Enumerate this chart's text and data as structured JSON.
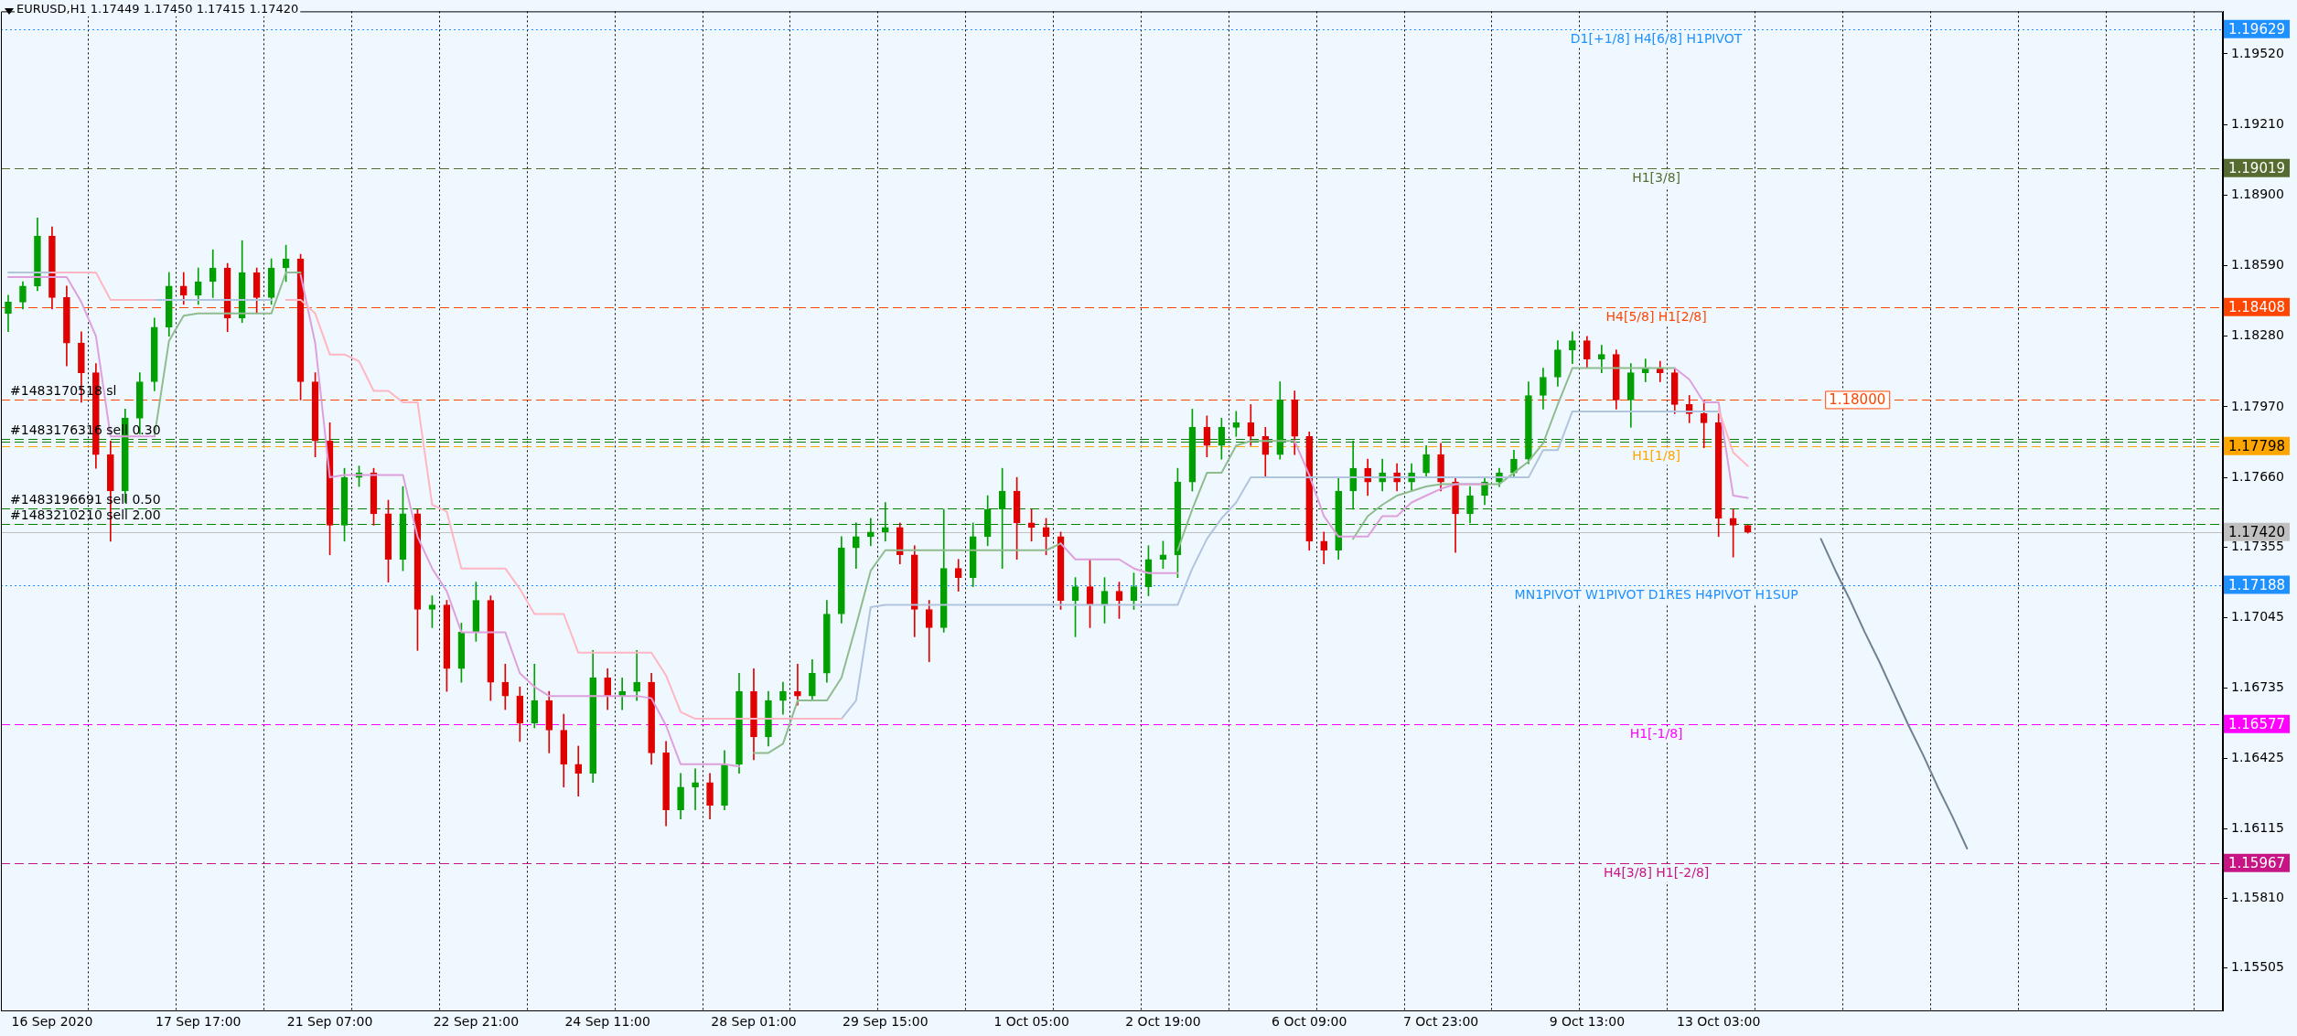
{
  "chart_data": {
    "type": "candlestick",
    "title": "EURUSD,H1 1.17449 1.17450 1.17415 1.17420",
    "grid": "x",
    "categories": [
      null,
      null,
      null,
      "16 Sep 2020",
      null,
      null,
      null,
      null,
      null,
      null,
      null,
      null,
      null,
      "17 Sep 17:00",
      null,
      null,
      null,
      null,
      null,
      null,
      null,
      null,
      "21 Sep 07:00",
      null,
      null,
      null,
      null,
      null,
      null,
      null,
      null,
      null,
      "22 Sep 21:00",
      null,
      null,
      null,
      null,
      null,
      null,
      null,
      null,
      "24 Sep 11:00",
      null,
      null,
      null,
      null,
      null,
      null,
      null,
      null,
      null,
      "28 Sep 01:00",
      null,
      null,
      null,
      null,
      null,
      null,
      null,
      null,
      "29 Sep 15:00",
      null,
      null,
      null,
      null,
      null,
      null,
      null,
      null,
      null,
      "1 Oct 05:00",
      null,
      null,
      null,
      null,
      null,
      null,
      null,
      null,
      "2 Oct 19:00",
      null,
      null,
      null,
      null,
      null,
      null,
      null,
      null,
      null,
      "6 Oct 09:00",
      null,
      null,
      null,
      null,
      null,
      null,
      null,
      null,
      "7 Oct 23:00",
      null,
      null,
      null,
      null,
      null,
      null,
      null,
      null,
      null,
      "9 Oct 13:00",
      null,
      null,
      null,
      null,
      null,
      null,
      null,
      null,
      "13 Oct 03:00",
      null,
      null,
      null,
      null,
      null,
      null,
      null,
      null,
      null,
      null,
      null,
      null,
      null,
      null,
      null,
      null,
      null,
      null,
      null,
      null,
      null,
      null,
      null,
      null,
      null,
      null,
      null,
      null,
      null,
      null,
      null,
      null,
      null,
      null
    ],
    "ylim": [
      1.15319,
      1.19707
    ],
    "yticks": [
      {
        "value": 1.1952,
        "label": "1.19520"
      },
      {
        "value": 1.1921,
        "label": "1.19210"
      },
      {
        "value": 1.189,
        "label": "1.18900"
      },
      {
        "value": 1.1859,
        "label": "1.18590"
      },
      {
        "value": 1.1828,
        "label": "1.18280"
      },
      {
        "value": 1.1797,
        "label": "1.17970"
      },
      {
        "value": 1.1766,
        "label": "1.17660"
      },
      {
        "value": 1.17355,
        "label": "1.17355"
      },
      {
        "value": 1.17045,
        "label": "1.17045"
      },
      {
        "value": 1.16735,
        "label": "1.16735"
      },
      {
        "value": 1.16425,
        "label": "1.16425"
      },
      {
        "value": 1.16115,
        "label": "1.16115"
      },
      {
        "value": 1.1581,
        "label": "1.15810"
      },
      {
        "value": 1.15505,
        "label": "1.15505"
      }
    ],
    "y2lim": [
      1.15319,
      1.19707
    ],
    "y2ticks": [
      {
        "value": 1.19629,
        "label": "1.19629"
      },
      {
        "value": 1.19019,
        "label": "1.19019"
      },
      {
        "value": 1.18408,
        "label": "1.18408"
      },
      {
        "value": 1.17798,
        "label": "1.17798"
      },
      {
        "value": 1.1742,
        "label": "1.17420"
      },
      {
        "value": 1.17188,
        "label": "1.17188"
      },
      {
        "value": 1.16577,
        "label": "1.16577"
      },
      {
        "value": 1.15967,
        "label": "1.15967"
      }
    ],
    "series": [
      {
        "type": "line",
        "color": "#ffb6c1",
        "values": [
          null,
          null,
          null,
          1.1856,
          1.1856,
          1.1856,
          1.1856,
          1.1844,
          1.1844,
          1.1844,
          1.1844,
          null,
          null,
          null,
          null,
          null,
          null,
          null,
          null,
          1.1844,
          1.1844,
          1.1838,
          1.182,
          1.182,
          1.1817,
          1.1804,
          1.1804,
          1.1799,
          1.1799,
          1.1754,
          1.1751,
          1.1726,
          1.1726,
          1.1726,
          1.1726,
          1.1717,
          1.1706,
          1.1706,
          1.1706,
          1.1689,
          1.1689,
          1.1689,
          1.1689,
          1.1689,
          1.1689,
          1.1679,
          1.1663,
          1.166,
          1.166,
          1.166,
          1.166,
          1.166,
          1.166,
          1.166,
          1.166,
          1.166,
          1.166,
          1.166,
          null,
          null,
          null,
          null,
          null,
          null,
          null,
          null,
          null,
          null,
          null,
          null,
          null,
          null,
          null,
          null,
          null,
          null,
          null,
          null,
          null,
          null,
          null,
          null,
          null,
          null,
          null,
          null,
          null,
          null,
          null,
          null,
          null,
          null,
          null,
          null,
          null,
          null,
          null,
          null,
          null,
          null,
          null,
          null,
          null,
          null,
          null,
          null,
          null,
          null,
          null,
          null,
          null,
          null,
          null,
          null,
          null,
          null,
          null,
          1.1796,
          1.1777,
          1.1771,
          null,
          null,
          null,
          null,
          null,
          null,
          null,
          null,
          null,
          null,
          null,
          null,
          null,
          null,
          null,
          null,
          null,
          null,
          null,
          null,
          null,
          null,
          null,
          null,
          null,
          null,
          null,
          null,
          null,
          null,
          null,
          null
        ]
      },
      {
        "type": "line",
        "color": "#b0c4de",
        "values": [
          1.1856,
          1.1856,
          1.1856,
          1.1856,
          null,
          null,
          null,
          null,
          null,
          null,
          1.1844,
          1.1844,
          1.1844,
          1.1844,
          1.1844,
          1.1844,
          1.1844,
          1.1844,
          1.1844,
          null,
          null,
          null,
          null,
          null,
          null,
          null,
          null,
          null,
          null,
          null,
          null,
          null,
          null,
          null,
          null,
          null,
          null,
          null,
          null,
          null,
          null,
          null,
          null,
          null,
          null,
          null,
          null,
          null,
          null,
          null,
          null,
          null,
          null,
          null,
          null,
          null,
          null,
          1.166,
          1.1668,
          1.1709,
          1.171,
          1.171,
          1.171,
          1.171,
          1.171,
          1.171,
          1.171,
          1.171,
          1.171,
          1.171,
          1.171,
          1.171,
          1.171,
          1.171,
          1.171,
          1.171,
          1.171,
          1.171,
          1.171,
          1.171,
          1.171,
          1.1726,
          1.1739,
          1.1748,
          1.1755,
          1.1766,
          1.1766,
          1.1766,
          1.1766,
          1.1766,
          1.1766,
          1.1766,
          1.1766,
          1.1766,
          1.1766,
          1.1766,
          1.1766,
          1.1766,
          1.1766,
          1.1766,
          1.1766,
          1.1766,
          1.1766,
          1.1766,
          1.1766,
          1.1778,
          1.1778,
          1.1795,
          1.1795,
          1.1795,
          1.1795,
          1.1795,
          1.1795,
          1.1795,
          1.1795,
          1.1795,
          1.1795,
          1.1795,
          null,
          null,
          null,
          null,
          null,
          null,
          null,
          null,
          null,
          null,
          null,
          null,
          null,
          null,
          null,
          null,
          null,
          null,
          null,
          null,
          null,
          null,
          null,
          null,
          null,
          null,
          null,
          null,
          null,
          null,
          null,
          null,
          null,
          null
        ]
      },
      {
        "type": "line",
        "color": "#dda0dd",
        "values": [
          1.1854,
          1.1854,
          1.1854,
          1.1854,
          1.1854,
          1.1843,
          1.1828,
          1.1784,
          1.1784,
          1.1784,
          1.1784,
          null,
          null,
          null,
          null,
          null,
          null,
          null,
          null,
          null,
          1.1855,
          1.1825,
          1.1766,
          1.1767,
          1.1767,
          1.1767,
          1.1767,
          1.1767,
          1.174,
          1.1726,
          1.1716,
          1.1698,
          1.1698,
          1.1698,
          1.1698,
          1.168,
          1.1674,
          1.167,
          1.167,
          1.167,
          1.167,
          1.167,
          1.167,
          1.167,
          1.1669,
          1.1657,
          1.164,
          1.164,
          1.164,
          1.164,
          1.1639,
          null,
          null,
          null,
          null,
          null,
          null,
          null,
          null,
          null,
          null,
          null,
          null,
          null,
          null,
          null,
          null,
          null,
          null,
          null,
          null,
          null,
          1.1737,
          1.173,
          1.173,
          1.173,
          1.173,
          1.1726,
          1.1724,
          1.1724,
          1.1724,
          null,
          null,
          null,
          null,
          null,
          null,
          null,
          1.1782,
          1.1767,
          1.1749,
          1.174,
          1.174,
          1.174,
          1.1749,
          1.1749,
          1.1755,
          1.1758,
          1.1761,
          1.1763,
          1.1763,
          1.1763,
          null,
          null,
          null,
          null,
          null,
          null,
          null,
          null,
          null,
          null,
          null,
          null,
          1.1814,
          1.1809,
          1.1799,
          1.1799,
          1.1758,
          1.1757,
          null,
          null,
          null,
          null,
          null,
          null,
          null,
          null,
          null,
          null,
          null,
          null,
          null,
          null,
          null,
          null,
          null,
          null,
          null,
          null,
          null,
          null,
          null,
          null,
          null,
          null,
          null,
          null,
          null,
          null,
          null,
          null
        ]
      },
      {
        "type": "line",
        "color": "#8fbc8f",
        "values": [
          null,
          null,
          null,
          null,
          null,
          null,
          null,
          null,
          null,
          null,
          1.1784,
          1.1826,
          1.1837,
          1.1838,
          1.1838,
          1.1838,
          1.1838,
          1.1838,
          1.1838,
          1.1856,
          1.1856,
          null,
          null,
          null,
          null,
          null,
          null,
          null,
          null,
          null,
          null,
          null,
          null,
          null,
          null,
          null,
          null,
          null,
          null,
          null,
          null,
          null,
          null,
          null,
          null,
          null,
          null,
          null,
          null,
          null,
          null,
          1.1645,
          1.1645,
          1.1649,
          1.1668,
          1.1668,
          1.1668,
          1.1678,
          1.1701,
          1.1725,
          1.1734,
          1.1734,
          1.1734,
          1.1734,
          1.1734,
          1.1734,
          1.1734,
          1.1734,
          1.1734,
          1.1734,
          1.1734,
          1.1734,
          1.1737,
          null,
          null,
          null,
          null,
          null,
          null,
          null,
          1.1734,
          1.1752,
          1.1768,
          1.1768,
          1.178,
          1.1782,
          1.1782,
          1.1782,
          1.1782,
          null,
          null,
          null,
          1.1739,
          1.1749,
          1.1754,
          1.1758,
          1.176,
          1.1762,
          1.1763,
          1.1763,
          1.1763,
          1.1763,
          1.1763,
          1.1768,
          1.1773,
          1.1781,
          1.1798,
          1.1814,
          1.1814,
          1.1814,
          1.1814,
          1.1814,
          1.1814,
          1.1814,
          1.1814,
          null,
          null,
          null,
          null,
          null,
          null,
          null,
          null,
          null,
          null,
          null,
          null,
          null,
          null,
          null,
          null,
          null,
          null,
          null,
          null,
          null,
          null,
          null,
          null,
          null,
          null,
          null,
          null,
          null,
          null,
          null,
          null,
          null,
          null,
          null,
          null,
          null
        ]
      },
      {
        "type": "line",
        "color": "#708090",
        "values": [
          null,
          null,
          null,
          null,
          null,
          null,
          null,
          null,
          null,
          null,
          null,
          null,
          null,
          null,
          null,
          null,
          null,
          null,
          null,
          null,
          null,
          null,
          null,
          null,
          null,
          null,
          null,
          null,
          null,
          null,
          null,
          null,
          null,
          null,
          null,
          null,
          null,
          null,
          null,
          null,
          null,
          null,
          null,
          null,
          null,
          null,
          null,
          null,
          null,
          null,
          null,
          null,
          null,
          null,
          null,
          null,
          null,
          null,
          null,
          null,
          null,
          null,
          null,
          null,
          null,
          null,
          null,
          null,
          null,
          null,
          null,
          null,
          null,
          null,
          null,
          null,
          null,
          null,
          null,
          null,
          null,
          null,
          null,
          null,
          null,
          null,
          null,
          null,
          null,
          null,
          null,
          null,
          null,
          null,
          null,
          null,
          null,
          null,
          null,
          null,
          null,
          null,
          null,
          null,
          null,
          null,
          null,
          null,
          null,
          null,
          null,
          null,
          null,
          null,
          null,
          null,
          null,
          null,
          null,
          null,
          null,
          null,
          null,
          null,
          1.1739,
          1.1725,
          1.1712,
          1.1698,
          1.1685,
          1.1671,
          1.1657,
          1.1644,
          1.163,
          1.1617,
          1.1603,
          null,
          null,
          null,
          null,
          null,
          null,
          null,
          null,
          null,
          null,
          null,
          null,
          null,
          null,
          null,
          null,
          null
        ]
      },
      {
        "colors": [
          "#00a000",
          "#00a000",
          "#00a000",
          "#e00000",
          "#e00000",
          "#e00000",
          "#e00000",
          "#e00000",
          "#00a000",
          "#00a000",
          "#00a000",
          "#00a000",
          "#e00000",
          "#00a000",
          "#00a000",
          "#e00000",
          "#00a000",
          "#e00000",
          "#00a000",
          "#00a000",
          "#e00000",
          "#e00000",
          "#e00000",
          "#00a000",
          "#00a000",
          "#e00000",
          "#e00000",
          "#00a000",
          "#e00000",
          "#00a000",
          "#e00000",
          "#00a000",
          "#00a000",
          "#e00000",
          "#e00000",
          "#e00000",
          "#00a000",
          "#e00000",
          "#e00000",
          "#e00000",
          "#00a000",
          "#e00000",
          "#00a000",
          "#00a000",
          "#e00000",
          "#e00000",
          "#00a000",
          "#00a000",
          "#e00000",
          "#00a000",
          "#00a000",
          "#e00000",
          "#00a000",
          "#00a000",
          "#e00000",
          "#00a000",
          "#00a000",
          "#00a000",
          "#00a000",
          "#00a000",
          "#00a000",
          "#e00000",
          "#e00000",
          "#e00000",
          "#00a000",
          "#e00000",
          "#00a000",
          "#00a000",
          "#00a000",
          "#e00000",
          "#e00000",
          "#e00000",
          "#e00000",
          "#00a000",
          "#e00000",
          "#00a000",
          "#e00000",
          "#00a000",
          "#00a000",
          "#00a000",
          "#00a000",
          "#00a000",
          "#e00000",
          "#00a000",
          "#00a000",
          "#e00000",
          "#e00000",
          "#00a000",
          "#e00000",
          "#e00000",
          "#e00000",
          "#00a000",
          "#00a000",
          "#e00000",
          "#00a000",
          "#e00000",
          "#00a000",
          "#00a000",
          "#e00000",
          "#e00000",
          "#00a000",
          "#00a000",
          "#00a000",
          "#00a000",
          "#00a000",
          "#00a000",
          "#00a000",
          "#00a000",
          "#e00000",
          "#00a000",
          "#e00000",
          "#00a000",
          "#00a000",
          "#e00000",
          "#e00000",
          "#e00000",
          "#e00000",
          "#e00000",
          "#e00000",
          "#e00000",
          null,
          null,
          null,
          null,
          null,
          null,
          null,
          null,
          null,
          null,
          null,
          null,
          null,
          null,
          null,
          null,
          null,
          null,
          null,
          null,
          null,
          null,
          null,
          null,
          null,
          null,
          null,
          null,
          null,
          null,
          null,
          null
        ],
        "ohlc": [
          [
            1.1838,
            1.1846,
            1.183,
            1.1843
          ],
          [
            1.1843,
            1.1852,
            1.184,
            1.185
          ],
          [
            1.185,
            1.188,
            1.1848,
            1.1872
          ],
          [
            1.1872,
            1.1876,
            1.184,
            1.1845
          ],
          [
            1.1845,
            1.185,
            1.1815,
            1.1825
          ],
          [
            1.1825,
            1.183,
            1.1799,
            1.1812
          ],
          [
            1.1812,
            1.1816,
            1.177,
            1.1776
          ],
          [
            1.1776,
            1.1782,
            1.1738,
            1.176
          ],
          [
            1.176,
            1.1796,
            1.1755,
            1.1792
          ],
          [
            1.1792,
            1.1812,
            1.1785,
            1.1808
          ],
          [
            1.1808,
            1.1836,
            1.1804,
            1.1832
          ],
          [
            1.1832,
            1.1856,
            1.1828,
            1.185
          ],
          [
            1.185,
            1.1856,
            1.1842,
            1.1846
          ],
          [
            1.1846,
            1.1858,
            1.1842,
            1.1852
          ],
          [
            1.1852,
            1.1866,
            1.1845,
            1.1858
          ],
          [
            1.1858,
            1.186,
            1.183,
            1.1836
          ],
          [
            1.1836,
            1.187,
            1.1834,
            1.1856
          ],
          [
            1.1856,
            1.1858,
            1.1838,
            1.1845
          ],
          [
            1.1845,
            1.1862,
            1.1842,
            1.1858
          ],
          [
            1.1858,
            1.1868,
            1.1852,
            1.1862
          ],
          [
            1.1862,
            1.1864,
            1.18,
            1.1808
          ],
          [
            1.1808,
            1.1812,
            1.1775,
            1.1782
          ],
          [
            1.1782,
            1.179,
            1.1732,
            1.1745
          ],
          [
            1.1745,
            1.177,
            1.1738,
            1.1766
          ],
          [
            1.1766,
            1.1771,
            1.1762,
            1.1768
          ],
          [
            1.1768,
            1.177,
            1.1745,
            1.175
          ],
          [
            1.175,
            1.1756,
            1.172,
            1.173
          ],
          [
            1.173,
            1.1762,
            1.1725,
            1.175
          ],
          [
            1.175,
            1.1752,
            1.169,
            1.1708
          ],
          [
            1.1708,
            1.1714,
            1.17,
            1.171
          ],
          [
            1.171,
            1.1712,
            1.1672,
            1.1682
          ],
          [
            1.1682,
            1.1702,
            1.1676,
            1.1698
          ],
          [
            1.1698,
            1.172,
            1.1694,
            1.1712
          ],
          [
            1.1712,
            1.1714,
            1.1668,
            1.1676
          ],
          [
            1.1676,
            1.1684,
            1.1664,
            1.167
          ],
          [
            1.167,
            1.1674,
            1.165,
            1.1658
          ],
          [
            1.1658,
            1.1684,
            1.1656,
            1.1668
          ],
          [
            1.1668,
            1.1672,
            1.1645,
            1.1655
          ],
          [
            1.1655,
            1.1662,
            1.163,
            1.164
          ],
          [
            1.164,
            1.1648,
            1.1626,
            1.1636
          ],
          [
            1.1636,
            1.169,
            1.1632,
            1.1678
          ],
          [
            1.1678,
            1.1682,
            1.1664,
            1.167
          ],
          [
            1.167,
            1.1678,
            1.1664,
            1.1672
          ],
          [
            1.1672,
            1.169,
            1.1668,
            1.1676
          ],
          [
            1.1676,
            1.168,
            1.164,
            1.1645
          ],
          [
            1.1645,
            1.165,
            1.1613,
            1.162
          ],
          [
            1.162,
            1.1636,
            1.1616,
            1.163
          ],
          [
            1.163,
            1.1638,
            1.162,
            1.1632
          ],
          [
            1.1632,
            1.1636,
            1.1616,
            1.1622
          ],
          [
            1.1622,
            1.1646,
            1.162,
            1.164
          ],
          [
            1.164,
            1.168,
            1.1636,
            1.1672
          ],
          [
            1.1672,
            1.1682,
            1.1642,
            1.1652
          ],
          [
            1.1652,
            1.1672,
            1.1648,
            1.1668
          ],
          [
            1.1668,
            1.1676,
            1.1662,
            1.1672
          ],
          [
            1.1672,
            1.1684,
            1.1666,
            1.167
          ],
          [
            1.167,
            1.1686,
            1.1668,
            1.168
          ],
          [
            1.168,
            1.1712,
            1.1676,
            1.1706
          ],
          [
            1.1706,
            1.174,
            1.1702,
            1.1735
          ],
          [
            1.1735,
            1.1746,
            1.1726,
            1.174
          ],
          [
            1.174,
            1.1748,
            1.1736,
            1.1742
          ],
          [
            1.1742,
            1.1755,
            1.1738,
            1.1744
          ],
          [
            1.1744,
            1.1746,
            1.1728,
            1.1732
          ],
          [
            1.1732,
            1.1736,
            1.1696,
            1.1708
          ],
          [
            1.1708,
            1.1712,
            1.1685,
            1.17
          ],
          [
            1.17,
            1.1752,
            1.1698,
            1.1726
          ],
          [
            1.1726,
            1.173,
            1.1716,
            1.1722
          ],
          [
            1.1722,
            1.1746,
            1.1718,
            1.174
          ],
          [
            1.174,
            1.1758,
            1.1736,
            1.1752
          ],
          [
            1.1752,
            1.177,
            1.1726,
            1.176
          ],
          [
            1.176,
            1.1766,
            1.173,
            1.1746
          ],
          [
            1.1746,
            1.1752,
            1.1738,
            1.1744
          ],
          [
            1.1744,
            1.1748,
            1.1732,
            1.174
          ],
          [
            1.174,
            1.1742,
            1.1708,
            1.1712
          ],
          [
            1.1712,
            1.1722,
            1.1696,
            1.1718
          ],
          [
            1.1718,
            1.173,
            1.17,
            1.171
          ],
          [
            1.171,
            1.1722,
            1.1702,
            1.1716
          ],
          [
            1.1716,
            1.172,
            1.1704,
            1.1712
          ],
          [
            1.1712,
            1.1724,
            1.1708,
            1.1718
          ],
          [
            1.1718,
            1.1736,
            1.1714,
            1.173
          ],
          [
            1.173,
            1.1738,
            1.1726,
            1.1732
          ],
          [
            1.1732,
            1.177,
            1.1722,
            1.1764
          ],
          [
            1.1764,
            1.1796,
            1.176,
            1.1788
          ],
          [
            1.1788,
            1.1793,
            1.1775,
            1.178
          ],
          [
            1.178,
            1.1792,
            1.1774,
            1.1788
          ],
          [
            1.1788,
            1.1795,
            1.1784,
            1.179
          ],
          [
            1.179,
            1.1798,
            1.178,
            1.1784
          ],
          [
            1.1784,
            1.1788,
            1.1766,
            1.1776
          ],
          [
            1.1776,
            1.1808,
            1.1774,
            1.18
          ],
          [
            1.18,
            1.1804,
            1.1776,
            1.1784
          ],
          [
            1.1784,
            1.1786,
            1.1734,
            1.1738
          ],
          [
            1.1738,
            1.1742,
            1.1728,
            1.1734
          ],
          [
            1.1734,
            1.1766,
            1.173,
            1.176
          ],
          [
            1.176,
            1.1782,
            1.1752,
            1.177
          ],
          [
            1.177,
            1.1774,
            1.1758,
            1.1764
          ],
          [
            1.1764,
            1.1774,
            1.176,
            1.1768
          ],
          [
            1.1768,
            1.1772,
            1.176,
            1.1764
          ],
          [
            1.1764,
            1.1772,
            1.176,
            1.1768
          ],
          [
            1.1768,
            1.178,
            1.1766,
            1.1776
          ],
          [
            1.1776,
            1.1781,
            1.176,
            1.1764
          ],
          [
            1.1764,
            1.1766,
            1.1733,
            1.175
          ],
          [
            1.175,
            1.1762,
            1.1746,
            1.1758
          ],
          [
            1.1758,
            1.1766,
            1.1754,
            1.1764
          ],
          [
            1.1764,
            1.177,
            1.1762,
            1.1768
          ],
          [
            1.1768,
            1.1778,
            1.1766,
            1.1774
          ],
          [
            1.1774,
            1.1808,
            1.1772,
            1.1802
          ],
          [
            1.1802,
            1.1814,
            1.1796,
            1.181
          ],
          [
            1.181,
            1.1826,
            1.1806,
            1.1822
          ],
          [
            1.1822,
            1.183,
            1.1816,
            1.1826
          ],
          [
            1.1826,
            1.1828,
            1.1814,
            1.1818
          ],
          [
            1.1818,
            1.1824,
            1.1812,
            1.182
          ],
          [
            1.182,
            1.1822,
            1.1796,
            1.18
          ],
          [
            1.18,
            1.1816,
            1.1788,
            1.1812
          ],
          [
            1.1812,
            1.1818,
            1.1808,
            1.1814
          ],
          [
            1.1814,
            1.1817,
            1.1808,
            1.1812
          ],
          [
            1.1812,
            1.1814,
            1.1794,
            1.1798
          ],
          [
            1.1798,
            1.1802,
            1.179,
            1.1794
          ],
          [
            1.1794,
            1.18,
            1.1779,
            1.179
          ],
          [
            1.179,
            1.1794,
            1.174,
            1.1748
          ],
          [
            1.1748,
            1.1752,
            1.1731,
            1.1745
          ],
          [
            1.17449,
            1.1745,
            1.17415,
            1.1742
          ],
          null,
          null,
          null,
          null,
          null,
          null,
          null,
          null,
          null,
          null,
          null,
          null,
          null,
          null,
          null,
          null,
          null,
          null,
          null,
          null,
          null,
          null,
          null,
          null,
          null,
          null,
          null,
          null,
          null,
          null,
          null,
          null
        ]
      }
    ],
    "ref_lines": [
      {
        "axis": "y",
        "value": 1.19629,
        "label": "D1[+1/8] H4[6/8] H1PIVOT",
        "color": "#1e90ff",
        "line_style": "dotted"
      },
      {
        "axis": "y",
        "value": 1.19019,
        "label": "H1[3/8]",
        "color": "#556b2f",
        "line_style": "dashed"
      },
      {
        "axis": "y",
        "value": 1.18408,
        "label": "H4[5/8] H1[2/8]",
        "color": "#ff4500",
        "line_style": "dashed"
      },
      {
        "axis": "y",
        "value": 1.18,
        "label": "#1483170518 sl",
        "color": "#ff4500",
        "line_style": "dashed"
      },
      {
        "axis": "y",
        "value": 1.1783,
        "label": "#1483176316 sell 0.30",
        "color": "#008000",
        "line_style": "dashed"
      },
      {
        "axis": "y",
        "value": 1.17818,
        "color": "#008000",
        "line_style": "dashed"
      },
      {
        "axis": "y",
        "value": 1.17798,
        "label": "H1[1/8]",
        "color": "#ffa500",
        "line_style": "dashed"
      },
      {
        "axis": "y",
        "value": 1.17524,
        "label": "#1483196691 sell 0.50",
        "color": "#008000",
        "line_style": "dashed"
      },
      {
        "axis": "y",
        "value": 1.17457,
        "label": "#1483210210 sell 2.00",
        "color": "#008000",
        "line_style": "dashed"
      },
      {
        "axis": "y",
        "value": 1.1742,
        "color": "#c0c0c0",
        "line_style": "solid"
      },
      {
        "axis": "y",
        "value": 1.17188,
        "label": "MN1PIVOT W1PIVOT D1RES H4PIVOT H1SUP",
        "color": "#1e90ff",
        "line_style": "dotted"
      },
      {
        "axis": "y",
        "value": 1.16577,
        "label": "H1[-1/8]",
        "color": "#ff00ff",
        "line_style": "dashed"
      },
      {
        "axis": "y",
        "value": 1.15967,
        "label": "H4[3/8] H1[-2/8]",
        "color": "#c71585",
        "line_style": "dashed"
      }
    ],
    "annotations": [
      {
        "text": "1.18000",
        "y": 1.18
      }
    ]
  }
}
